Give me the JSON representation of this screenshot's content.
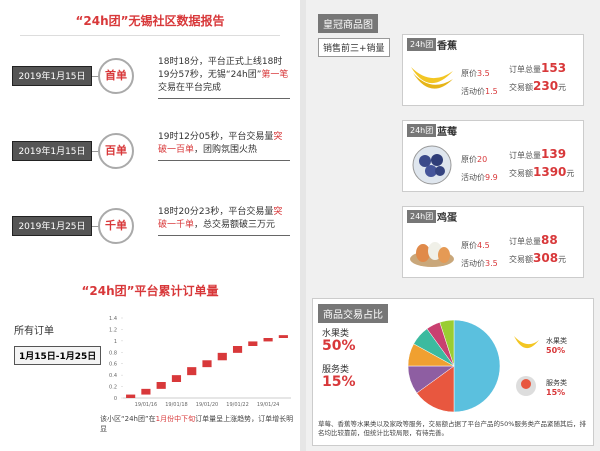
{
  "left": {
    "title": "“24h团”无锡社区数据报告",
    "milestones": [
      {
        "date": "2019年1月15日",
        "badge": "首单",
        "text": [
          {
            "t": "18时18分，平台正式上线18时19分57秒，无锡“24h团”",
            "red": false
          },
          {
            "t": "第一笔",
            "red": true
          },
          {
            "t": "交易在平台完成",
            "red": false
          }
        ]
      },
      {
        "date": "2019年1月15日",
        "badge": "百单",
        "text": [
          {
            "t": "19时12分05秒，平台交易量",
            "red": false
          },
          {
            "t": "突破一百单",
            "red": true
          },
          {
            "t": "，团购氛围火热",
            "red": false
          }
        ]
      },
      {
        "date": "2019年1月25日",
        "badge": "千单",
        "text": [
          {
            "t": "18时20分23秒，平台交易量",
            "red": false
          },
          {
            "t": "突破一千单",
            "red": true
          },
          {
            "t": "，总交易额破三万元",
            "red": false
          }
        ]
      }
    ],
    "chart_title": "“24h团”平台累计订单量",
    "tab": "所有订单",
    "range": "1月15日-1月25日",
    "caption": [
      {
        "t": "该小区“24h团”在",
        "red": false
      },
      {
        "t": "1月份中下旬",
        "red": true
      },
      {
        "t": "订单量呈上涨趋势，订单增长明显",
        "red": false
      }
    ]
  },
  "chart_data": {
    "type": "waterfall",
    "categories": [
      null,
      "19/01/16",
      null,
      "19/01/18",
      null,
      "19/01/20",
      null,
      "19/01/22",
      null,
      "19/01/24",
      null
    ],
    "values": [
      0.06,
      0.1,
      0.12,
      0.12,
      0.14,
      0.12,
      0.13,
      0.12,
      0.08,
      0.06,
      0.05
    ],
    "color": "#d8383a",
    "ylim": [
      0,
      1.4
    ],
    "yticks": [
      0,
      0.2,
      0.4,
      0.6,
      0.8,
      1,
      1.2,
      1.4
    ],
    "grid": false
  },
  "right": {
    "title": "皇冠商品图",
    "subtitle": "销售前三+销量",
    "products": [
      {
        "tag": "24h团",
        "name": "香蕉",
        "orig_label": "原价",
        "orig": "3.5",
        "promo_label": "活动价",
        "promo": "1.5",
        "orders_label": "订单总量",
        "orders": "153",
        "amount_label": "交易额",
        "amount": "230",
        "unit": "元"
      },
      {
        "tag": "24h团",
        "name": "蓝莓",
        "orig_label": "原价",
        "orig": "20",
        "promo_label": "活动价",
        "promo": "9.9",
        "orders_label": "订单总量",
        "orders": "139",
        "amount_label": "交易额",
        "amount": "1390",
        "unit": "元"
      },
      {
        "tag": "24h团",
        "name": "鸡蛋",
        "orig_label": "原价",
        "orig": "4.5",
        "promo_label": "活动价",
        "promo": "3.5",
        "orders_label": "订单总量",
        "orders": "88",
        "amount_label": "交易额",
        "amount": "308",
        "unit": "元"
      }
    ],
    "share_title": "商品交易占比",
    "fruit_label": "水果类",
    "fruit_pct": "50%",
    "service_label": "服务类",
    "service_pct": "15%",
    "pie": {
      "values": [
        50,
        15,
        10,
        8,
        7,
        5,
        5
      ],
      "colors": [
        "#5bc0de",
        "#e8573f",
        "#8e5ea2",
        "#f0a030",
        "#3cba9f",
        "#c94070",
        "#9acd32"
      ]
    },
    "note": "草莓、香蕉等水果类以及家政等服务，交易额占据了平台产品的50%服务类产品紧随其后，排名均比较靠前，但统计比较局限，有待完善。"
  }
}
